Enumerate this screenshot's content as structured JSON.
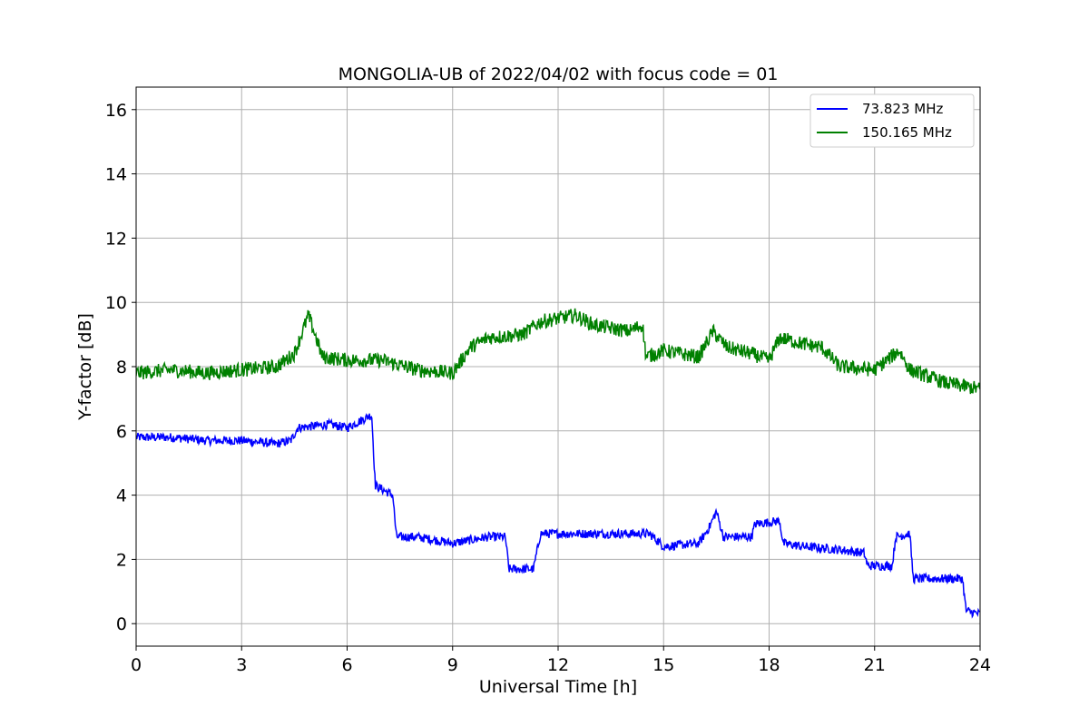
{
  "chart_data": {
    "type": "line",
    "title": "MONGOLIA-UB of 2022/04/02 with focus code = 01",
    "xlabel": "Universal Time [h]",
    "ylabel": "Y-factor [dB]",
    "xlim": [
      0,
      24
    ],
    "ylim": [
      -0.7,
      16.7
    ],
    "xticks": [
      0,
      3,
      6,
      9,
      12,
      15,
      18,
      21,
      24
    ],
    "yticks": [
      0,
      2,
      4,
      6,
      8,
      10,
      12,
      14,
      16
    ],
    "grid": true,
    "legend_position": "top-right",
    "series": [
      {
        "name": "73.823 MHz",
        "color": "#0000ff",
        "keypoints": [
          [
            0,
            5.8
          ],
          [
            1,
            5.8
          ],
          [
            2,
            5.7
          ],
          [
            3,
            5.7
          ],
          [
            4,
            5.6
          ],
          [
            4.4,
            5.7
          ],
          [
            4.6,
            6.1
          ],
          [
            5.5,
            6.2
          ],
          [
            6.0,
            6.1
          ],
          [
            6.7,
            6.5
          ],
          [
            6.8,
            4.3
          ],
          [
            7.3,
            4.0
          ],
          [
            7.4,
            2.7
          ],
          [
            8.0,
            2.7
          ],
          [
            9.0,
            2.5
          ],
          [
            10.0,
            2.7
          ],
          [
            10.5,
            2.7
          ],
          [
            10.6,
            1.7
          ],
          [
            11.3,
            1.7
          ],
          [
            11.5,
            2.8
          ],
          [
            12.0,
            2.8
          ],
          [
            13.0,
            2.8
          ],
          [
            14.0,
            2.8
          ],
          [
            14.6,
            2.8
          ],
          [
            15.0,
            2.4
          ],
          [
            16.0,
            2.5
          ],
          [
            16.3,
            3.0
          ],
          [
            16.5,
            3.5
          ],
          [
            16.7,
            2.7
          ],
          [
            17.5,
            2.7
          ],
          [
            17.6,
            3.1
          ],
          [
            18.3,
            3.2
          ],
          [
            18.4,
            2.5
          ],
          [
            19.0,
            2.4
          ],
          [
            20.0,
            2.3
          ],
          [
            20.7,
            2.2
          ],
          [
            20.8,
            1.8
          ],
          [
            21.5,
            1.8
          ],
          [
            21.6,
            2.7
          ],
          [
            22.0,
            2.8
          ],
          [
            22.1,
            1.4
          ],
          [
            23.0,
            1.4
          ],
          [
            23.5,
            1.4
          ],
          [
            23.6,
            0.4
          ],
          [
            24.0,
            0.3
          ]
        ]
      },
      {
        "name": "150.165 MHz",
        "color": "#008000",
        "keypoints": [
          [
            0,
            7.8
          ],
          [
            1,
            7.9
          ],
          [
            2,
            7.8
          ],
          [
            3,
            7.9
          ],
          [
            4,
            8.0
          ],
          [
            4.5,
            8.4
          ],
          [
            4.9,
            9.6
          ],
          [
            5.3,
            8.3
          ],
          [
            6.0,
            8.2
          ],
          [
            7.0,
            8.2
          ],
          [
            8.0,
            7.9
          ],
          [
            9.0,
            7.8
          ],
          [
            9.5,
            8.6
          ],
          [
            10.0,
            8.9
          ],
          [
            11.0,
            9.0
          ],
          [
            11.5,
            9.4
          ],
          [
            12.0,
            9.5
          ],
          [
            12.5,
            9.6
          ],
          [
            13.0,
            9.3
          ],
          [
            14.0,
            9.1
          ],
          [
            14.4,
            9.3
          ],
          [
            14.5,
            8.3
          ],
          [
            15.0,
            8.5
          ],
          [
            16.0,
            8.3
          ],
          [
            16.4,
            9.1
          ],
          [
            16.8,
            8.6
          ],
          [
            17.5,
            8.4
          ],
          [
            18.0,
            8.2
          ],
          [
            18.3,
            8.9
          ],
          [
            19.0,
            8.7
          ],
          [
            19.5,
            8.6
          ],
          [
            20.0,
            8.0
          ],
          [
            21.0,
            7.9
          ],
          [
            21.7,
            8.5
          ],
          [
            22.0,
            7.9
          ],
          [
            23.0,
            7.5
          ],
          [
            24.0,
            7.3
          ]
        ]
      }
    ]
  }
}
